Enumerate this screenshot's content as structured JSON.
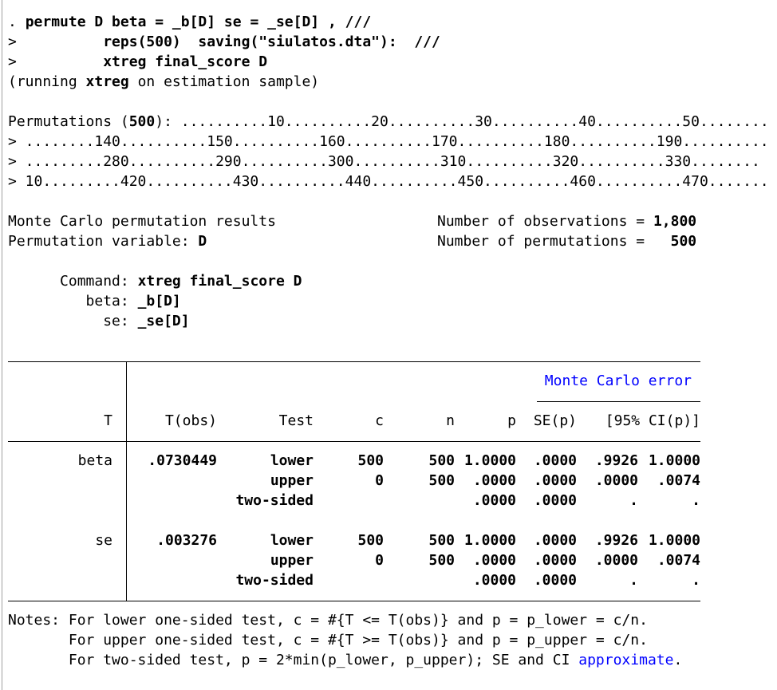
{
  "accent_color": "#0000ff",
  "log_lines": [
    {
      "y": 0,
      "segs": [
        {
          "t": ". "
        },
        {
          "t": "permute D beta = _b[D] se = _se[D] , ///",
          "b": true
        }
      ]
    },
    {
      "y": 1,
      "segs": [
        {
          "t": ">          "
        },
        {
          "t": "reps(500)  saving(\"siulatos.dta\"):  ///",
          "b": true
        }
      ]
    },
    {
      "y": 2,
      "segs": [
        {
          "t": ">          "
        },
        {
          "t": "xtreg final_score D",
          "b": true
        }
      ]
    },
    {
      "y": 3,
      "segs": [
        {
          "t": "(running "
        },
        {
          "t": "xtreg",
          "b": true
        },
        {
          "t": " on estimation sample)"
        }
      ]
    },
    {
      "y": 5,
      "segs": [
        {
          "t": "Permutations ("
        },
        {
          "t": "500",
          "b": true
        },
        {
          "t": "): ..........10..........20..........30..........40..........50........"
        }
      ]
    },
    {
      "y": 6,
      "segs": [
        {
          "t": "> ........140..........150..........160..........170..........180..........190.........."
        }
      ]
    },
    {
      "y": 7,
      "segs": [
        {
          "t": "> .........280..........290..........300..........310..........320..........330........"
        }
      ]
    },
    {
      "y": 8,
      "segs": [
        {
          "t": "> 10.........420..........430..........440..........450..........460..........470......."
        }
      ]
    },
    {
      "y": 10,
      "segs": [
        {
          "t": "Monte Carlo permutation results"
        }
      ]
    },
    {
      "y": 11,
      "segs": [
        {
          "t": "Permutation variable: "
        },
        {
          "t": "D",
          "b": true
        }
      ]
    },
    {
      "y": 13,
      "segs": [
        {
          "t": "      Command: "
        },
        {
          "t": "xtreg final_score D",
          "b": true
        }
      ]
    },
    {
      "y": 14,
      "segs": [
        {
          "t": "         beta: "
        },
        {
          "t": "_b[D]",
          "b": true
        }
      ]
    },
    {
      "y": 15,
      "segs": [
        {
          "t": "           se: "
        },
        {
          "t": "_se[D]",
          "b": true
        }
      ]
    },
    {
      "y": 30,
      "segs": [
        {
          "t": "Notes: For lower one-sided test, c = #{T <= T(obs)} and p = p_lower = c/n."
        }
      ]
    },
    {
      "y": 31,
      "segs": [
        {
          "t": "       For upper one-sided test, c = #{T >= T(obs)} and p = p_upper = c/n."
        }
      ]
    },
    {
      "y": 32,
      "segs": [
        {
          "t": "       For two-sided test, p = 2*min(p_lower, p_upper); SE and CI "
        },
        {
          "t": "approximate",
          "c": "#0000ff"
        },
        {
          "t": "."
        }
      ]
    }
  ],
  "summary": {
    "obs_label": "Number of observations =",
    "obs_value": "1,800",
    "perm_label": "Number of permutations =",
    "perm_value": "500"
  },
  "table": {
    "group_header": "Monte Carlo error",
    "headers": [
      "T",
      "T(obs)",
      "Test",
      "c",
      "n",
      "p",
      "SE(p)",
      "[95% CI(p)]"
    ],
    "rows": [
      [
        "beta",
        ".0730449",
        "lower",
        "500",
        "500",
        "1.0000",
        ".0000",
        ".9926",
        "1.0000"
      ],
      [
        "",
        "",
        "upper",
        "0",
        "500",
        ".0000",
        ".0000",
        ".0000",
        ".0074"
      ],
      [
        "",
        "",
        "two-sided",
        "",
        "",
        ".0000",
        ".0000",
        ".",
        "."
      ],
      [
        "se",
        ".003276",
        "lower",
        "500",
        "500",
        "1.0000",
        ".0000",
        ".9926",
        "1.0000"
      ],
      [
        "",
        "",
        "upper",
        "0",
        "500",
        ".0000",
        ".0000",
        ".0000",
        ".0074"
      ],
      [
        "",
        "",
        "two-sided",
        "",
        "",
        ".0000",
        ".0000",
        ".",
        "."
      ]
    ]
  }
}
